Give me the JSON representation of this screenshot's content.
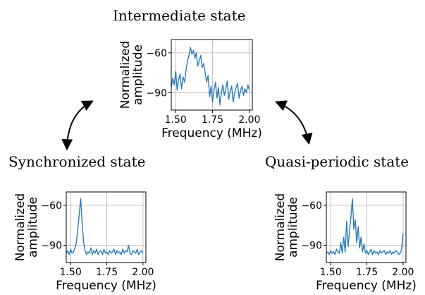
{
  "headings": {
    "intermediate": "Intermediate state",
    "synchronized": "Synchronized state",
    "quasi_periodic": "Quasi-periodic state"
  },
  "colors": {
    "series": "#2b7bba",
    "grid": "#b0b0b0",
    "axes": "#000000"
  },
  "chart_data": [
    {
      "type": "line",
      "title": "Intermediate state",
      "xlabel": "Frequency (MHz)",
      "ylabel": "Normalized amplitude",
      "xlim": [
        1.47,
        2.02
      ],
      "ylim": [
        -103,
        -50
      ],
      "xticks": [
        1.5,
        1.75,
        2.0
      ],
      "xtick_labels": [
        "1.50",
        "1.75",
        "2.00"
      ],
      "yticks": [
        -60,
        -90
      ],
      "ytick_labels": [
        "−60",
        "−90"
      ],
      "grid": true,
      "series": [
        {
          "x": [
            1.47,
            1.48,
            1.49,
            1.5,
            1.51,
            1.52,
            1.53,
            1.54,
            1.55,
            1.56,
            1.57,
            1.58,
            1.59,
            1.6,
            1.61,
            1.62,
            1.63,
            1.64,
            1.65,
            1.66,
            1.67,
            1.68,
            1.69,
            1.7,
            1.71,
            1.72,
            1.73,
            1.74,
            1.75,
            1.76,
            1.77,
            1.78,
            1.79,
            1.8,
            1.81,
            1.82,
            1.83,
            1.84,
            1.85,
            1.86,
            1.87,
            1.88,
            1.89,
            1.9,
            1.91,
            1.92,
            1.93,
            1.94,
            1.95,
            1.96,
            1.97,
            1.98,
            1.99,
            2.0
          ],
          "y": [
            -86,
            -79,
            -84,
            -74,
            -88,
            -80,
            -76,
            -87,
            -78,
            -82,
            -73,
            -66,
            -62,
            -56,
            -61,
            -58,
            -64,
            -60,
            -70,
            -66,
            -62,
            -71,
            -68,
            -75,
            -82,
            -77,
            -93,
            -85,
            -97,
            -88,
            -82,
            -94,
            -86,
            -99,
            -90,
            -84,
            -92,
            -87,
            -81,
            -95,
            -89,
            -85,
            -97,
            -90,
            -86,
            -83,
            -94,
            -88,
            -85,
            -92,
            -87,
            -90,
            -84,
            -88
          ]
        }
      ]
    },
    {
      "type": "line",
      "title": "Synchronized state",
      "xlabel": "Frequency (MHz)",
      "ylabel": "Normalized amplitude",
      "xlim": [
        1.47,
        2.02
      ],
      "ylim": [
        -103,
        -50
      ],
      "xticks": [
        1.5,
        1.75,
        2.0
      ],
      "xtick_labels": [
        "1.50",
        "1.75",
        "2.00"
      ],
      "yticks": [
        -60,
        -90
      ],
      "ytick_labels": [
        "−60",
        "−90"
      ],
      "grid": true,
      "series": [
        {
          "x": [
            1.47,
            1.48,
            1.49,
            1.5,
            1.51,
            1.52,
            1.53,
            1.54,
            1.55,
            1.56,
            1.57,
            1.58,
            1.59,
            1.6,
            1.61,
            1.62,
            1.63,
            1.64,
            1.65,
            1.66,
            1.67,
            1.68,
            1.69,
            1.7,
            1.71,
            1.72,
            1.73,
            1.74,
            1.75,
            1.76,
            1.77,
            1.78,
            1.79,
            1.8,
            1.81,
            1.82,
            1.83,
            1.84,
            1.85,
            1.86,
            1.87,
            1.88,
            1.89,
            1.9,
            1.91,
            1.92,
            1.93,
            1.94,
            1.95,
            1.96,
            1.97,
            1.98,
            1.99,
            2.0
          ],
          "y": [
            -96,
            -94,
            -97,
            -93,
            -96,
            -95,
            -92,
            -88,
            -78,
            -66,
            -55,
            -74,
            -88,
            -94,
            -97,
            -95,
            -96,
            -92,
            -97,
            -94,
            -96,
            -93,
            -97,
            -95,
            -94,
            -97,
            -93,
            -96,
            -95,
            -97,
            -94,
            -96,
            -95,
            -93,
            -97,
            -94,
            -96,
            -95,
            -97,
            -93,
            -96,
            -94,
            -95,
            -90,
            -96,
            -97,
            -94,
            -95,
            -96,
            -93,
            -97,
            -95,
            -94,
            -96
          ]
        }
      ]
    },
    {
      "type": "line",
      "title": "Quasi-periodic state",
      "xlabel": "Frequency (MHz)",
      "ylabel": "Normalized amplitude",
      "xlim": [
        1.47,
        2.02
      ],
      "ylim": [
        -103,
        -50
      ],
      "xticks": [
        1.5,
        1.75,
        2.0
      ],
      "xtick_labels": [
        "1.50",
        "1.75",
        "2.00"
      ],
      "yticks": [
        -60,
        -90
      ],
      "ytick_labels": [
        "−60",
        "−90"
      ],
      "grid": true,
      "series": [
        {
          "x": [
            1.47,
            1.48,
            1.49,
            1.5,
            1.51,
            1.52,
            1.53,
            1.54,
            1.55,
            1.56,
            1.57,
            1.58,
            1.59,
            1.6,
            1.61,
            1.62,
            1.63,
            1.64,
            1.65,
            1.66,
            1.67,
            1.68,
            1.69,
            1.7,
            1.71,
            1.72,
            1.73,
            1.74,
            1.75,
            1.76,
            1.77,
            1.78,
            1.79,
            1.8,
            1.81,
            1.82,
            1.83,
            1.84,
            1.85,
            1.86,
            1.87,
            1.88,
            1.89,
            1.9,
            1.91,
            1.92,
            1.93,
            1.94,
            1.95,
            1.96,
            1.97,
            1.98,
            1.99,
            2.0
          ],
          "y": [
            -96,
            -95,
            -97,
            -94,
            -96,
            -95,
            -97,
            -93,
            -95,
            -96,
            -88,
            -96,
            -84,
            -95,
            -72,
            -91,
            -80,
            -69,
            -55,
            -78,
            -71,
            -88,
            -76,
            -92,
            -84,
            -95,
            -89,
            -96,
            -94,
            -97,
            -95,
            -93,
            -97,
            -94,
            -96,
            -95,
            -97,
            -94,
            -96,
            -95,
            -94,
            -97,
            -95,
            -96,
            -94,
            -97,
            -95,
            -96,
            -94,
            -95,
            -97,
            -96,
            -93,
            -81
          ]
        }
      ]
    }
  ]
}
